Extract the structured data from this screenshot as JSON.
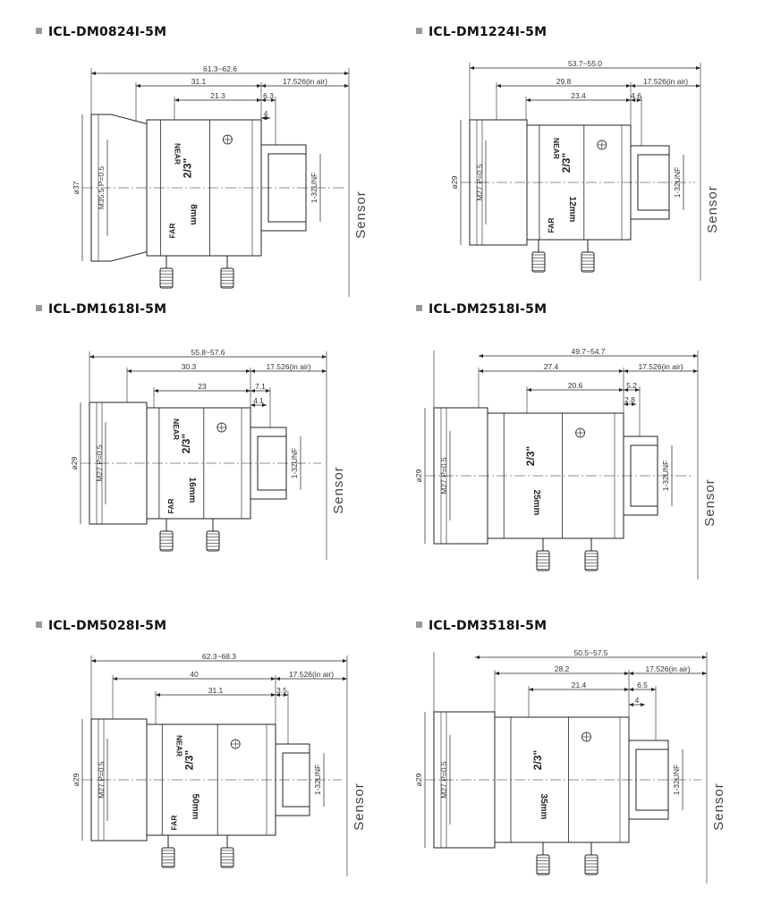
{
  "panels": [
    {
      "model": "ICL-DM0824I-5M",
      "dims": {
        "total": "61.3~62.6",
        "mount_len": "31.1",
        "flange": "17.526(in air)",
        "body": "21.3",
        "d1": "6.3",
        "d2": "4"
      },
      "thread": "M35.5 P=0.5",
      "diameter": "ø37",
      "unf": "1-32UNF",
      "focal": "8mm",
      "format": "2/3\"",
      "near": "NEAR",
      "far": "FAR",
      "sensor": "Sensor"
    },
    {
      "model": "ICL-DM1224I-5M",
      "dims": {
        "total": "53.7~55.0",
        "mount_len": "29.8",
        "flange": "17.526(in air)",
        "body": "23.4",
        "d1": "4.6",
        "d2": ""
      },
      "thread": "M27 P=0.5",
      "diameter": "ø29",
      "unf": "1-32UNF",
      "focal": "12mm",
      "format": "2/3\"",
      "near": "NEAR",
      "far": "FAR",
      "sensor": "Sensor"
    },
    {
      "model": "ICL-DM1618I-5M",
      "dims": {
        "total": "55.8~57.6",
        "mount_len": "30.3",
        "flange": "17.526(in air)",
        "body": "23",
        "d1": "7.1",
        "d2": "4.1"
      },
      "thread": "M27 P=0.5",
      "diameter": "ø29",
      "unf": "1-32UNF",
      "focal": "16mm",
      "format": "2/3\"",
      "near": "NEAR",
      "far": "FAR",
      "sensor": "Sensor"
    },
    {
      "model": "ICL-DM2518I-5M",
      "dims": {
        "total": "49.7~54.7",
        "mount_len": "27.4",
        "flange": "17.526(in air)",
        "body": "20.6",
        "d1": "5.2",
        "d2": "2.8"
      },
      "thread": "M27 P=0.5",
      "diameter": "ø29",
      "unf": "1-32UNF",
      "focal": "25mm",
      "format": "2/3\"",
      "near": "",
      "far": "",
      "sensor": "Sensor"
    },
    {
      "model": "ICL-DM5028I-5M",
      "dims": {
        "total": "62.3~68.3",
        "mount_len": "40",
        "flange": "17.526(in air)",
        "body": "31.1",
        "d1": "3.5",
        "d2": ""
      },
      "thread": "M27 P=0.5",
      "diameter": "ø29",
      "unf": "1-32UNF",
      "focal": "50mm",
      "format": "2/3\"",
      "near": "NEAR",
      "far": "FAR",
      "sensor": "Sensor"
    },
    {
      "model": "ICL-DM3518I-5M",
      "dims": {
        "total": "50.5~57.5",
        "mount_len": "28.2",
        "flange": "17.526(in air)",
        "body": "21.4",
        "d1": "6.5",
        "d2": "4"
      },
      "thread": "M27 P=0.5",
      "diameter": "ø29",
      "unf": "1-32UNF",
      "focal": "35mm",
      "format": "2/3\"",
      "near": "",
      "far": "",
      "sensor": "Sensor"
    }
  ]
}
